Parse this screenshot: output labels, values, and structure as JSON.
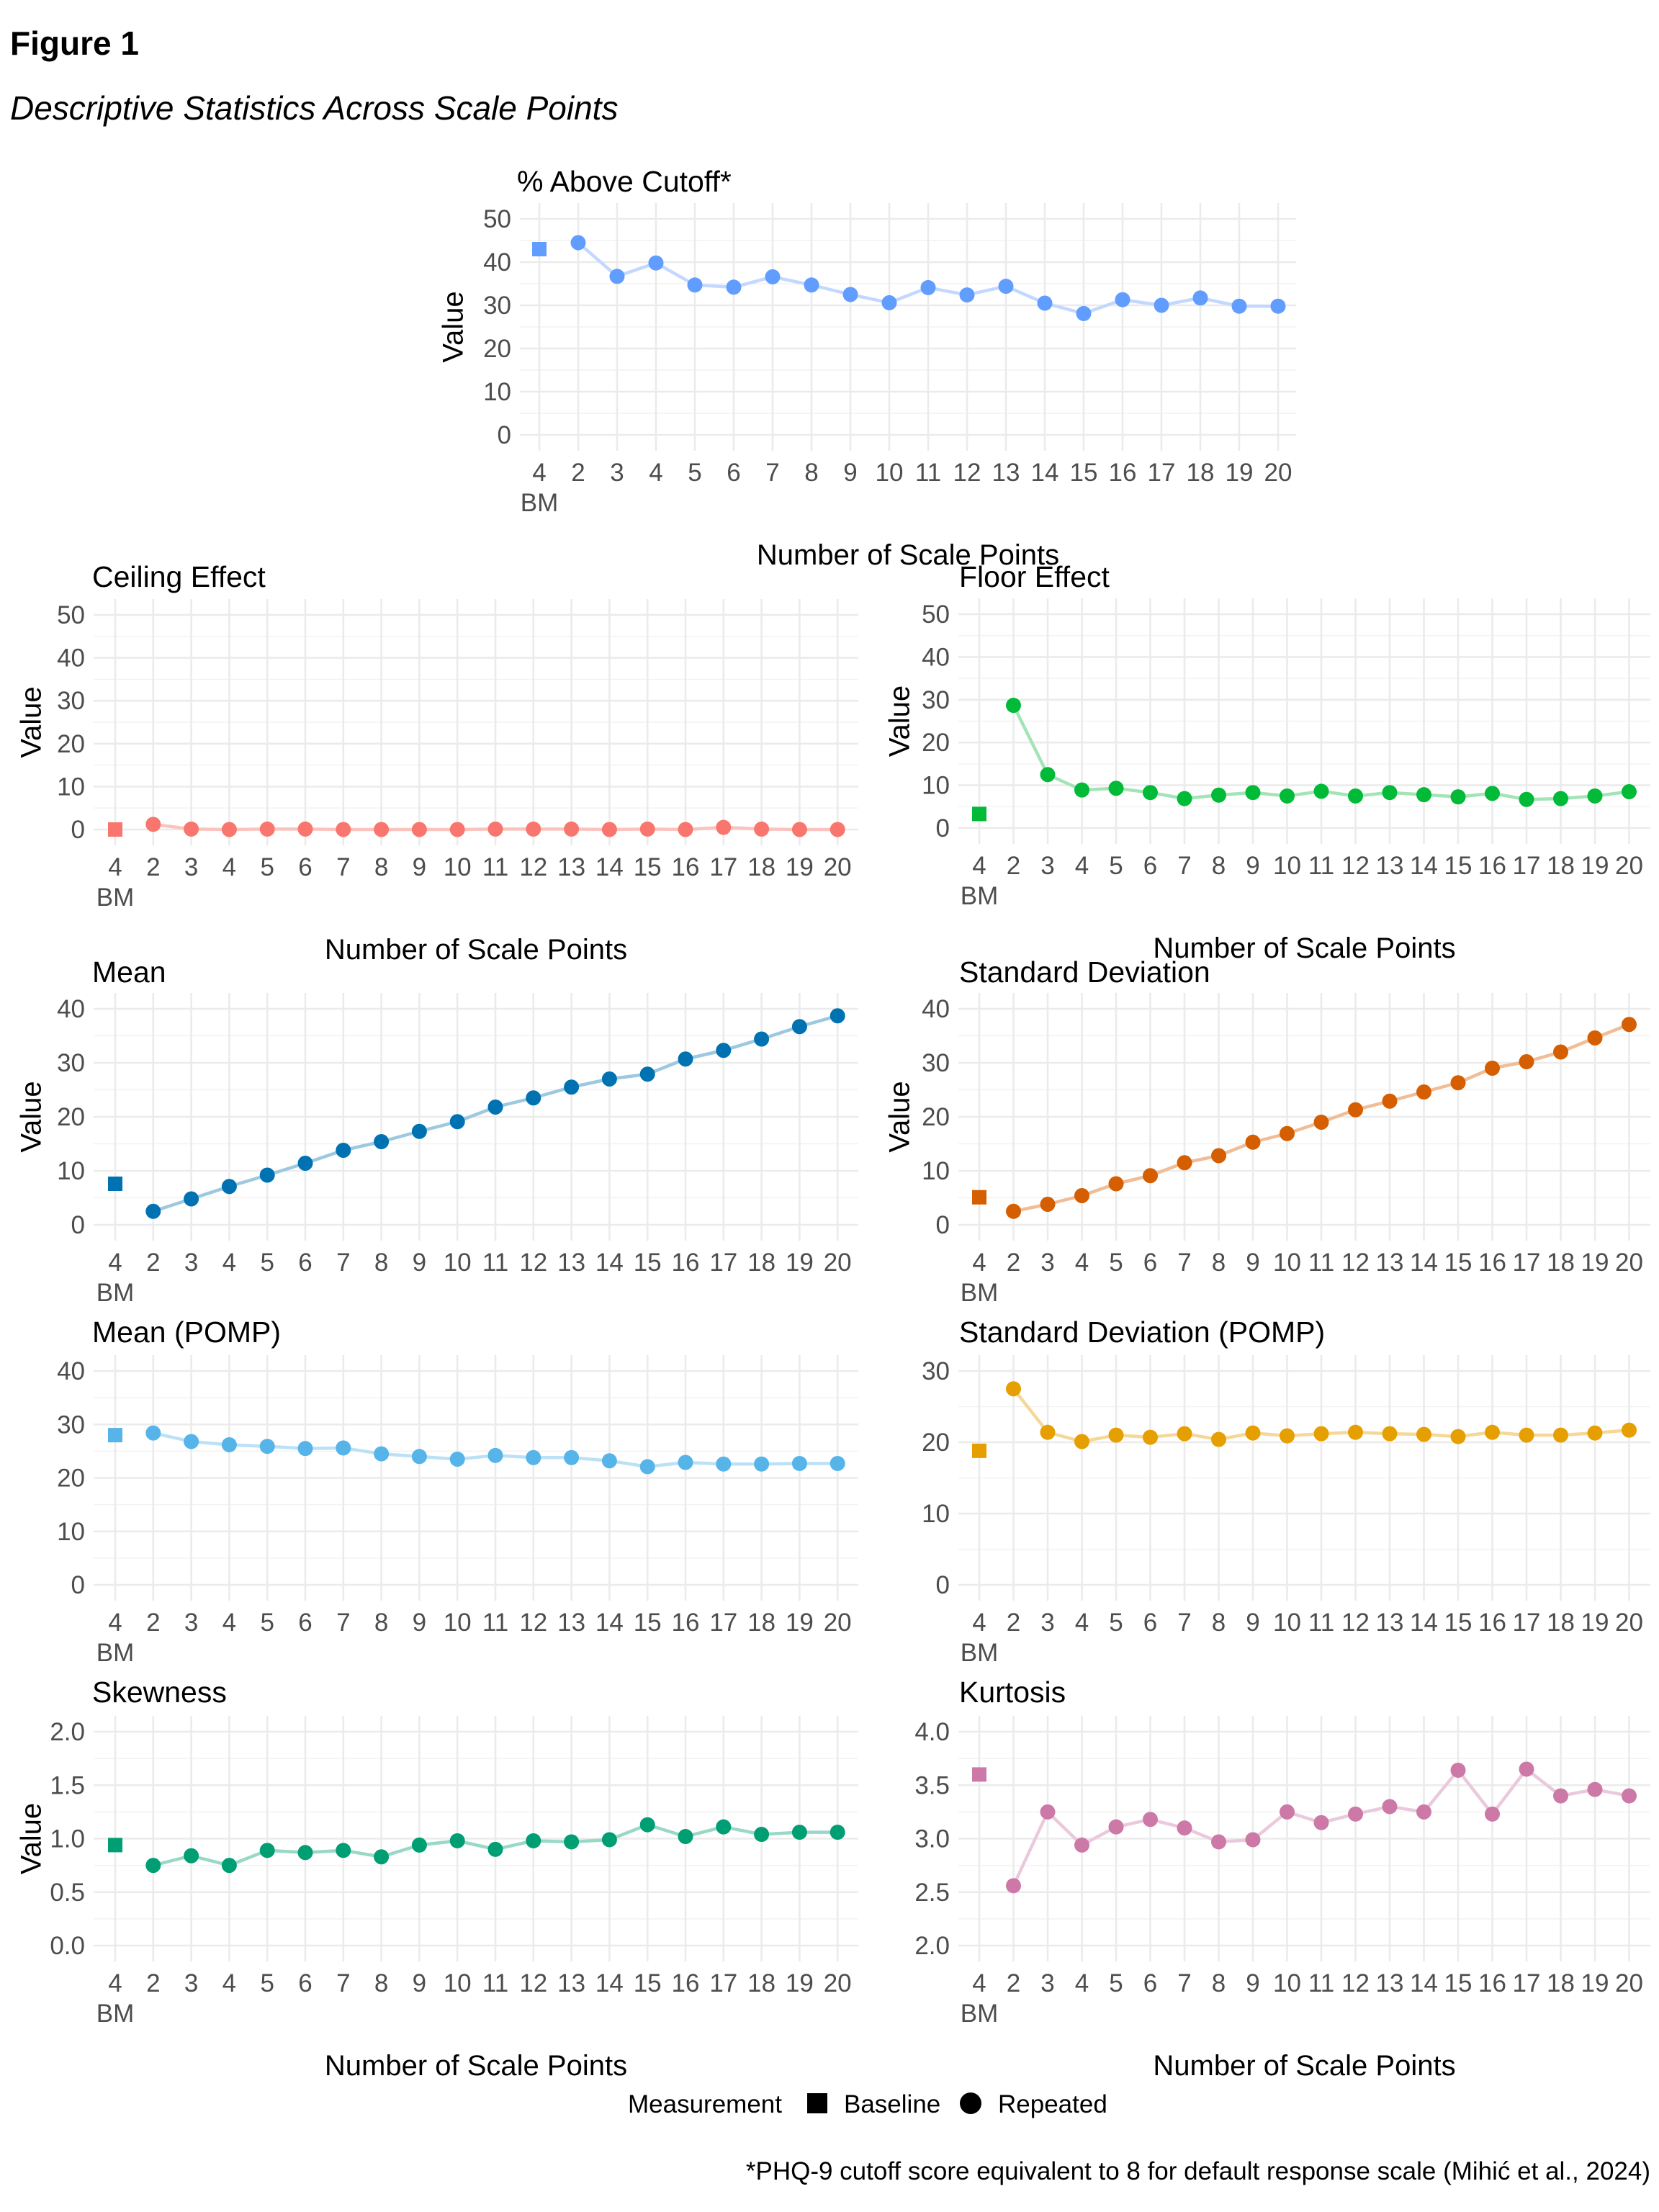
{
  "figure": {
    "label": "Figure 1",
    "title": "Descriptive Statistics Across Scale Points",
    "legend": {
      "title": "Measurement",
      "items": [
        {
          "label": "Baseline",
          "shape": "square"
        },
        {
          "label": "Repeated",
          "shape": "circle"
        }
      ]
    },
    "footnote": "*PHQ-9 cutoff score equivalent to 8 for default response scale (Mihić et al., 2024)"
  },
  "chart_data": [
    {
      "id": "above_cutoff",
      "type": "line",
      "title": "% Above Cutoff*",
      "xlabel": "Number of Scale Points",
      "ylabel": "Value",
      "color": "#619CFF",
      "line_color": "#C3D8FF",
      "categories": [
        "4\nBM",
        "2",
        "3",
        "4",
        "5",
        "6",
        "7",
        "8",
        "9",
        "10",
        "11",
        "12",
        "13",
        "14",
        "15",
        "16",
        "17",
        "18",
        "19",
        "20"
      ],
      "baseline": {
        "category": "4\nBM",
        "value": 43.0
      },
      "repeated": {
        "x": [
          2,
          3,
          4,
          5,
          6,
          7,
          8,
          9,
          10,
          11,
          12,
          13,
          14,
          15,
          16,
          17,
          18,
          19,
          20
        ],
        "values": [
          44.5,
          36.7,
          39.8,
          34.7,
          34.2,
          36.6,
          34.7,
          32.5,
          30.6,
          34.1,
          32.4,
          34.4,
          30.5,
          28.1,
          31.3,
          30.0,
          31.7,
          29.8,
          29.8
        ]
      },
      "ylim": [
        0,
        50
      ],
      "yticks": [
        "0",
        "10",
        "20",
        "30",
        "40",
        "50"
      ],
      "ytick_values": [
        0,
        10,
        20,
        30,
        40,
        50
      ],
      "grid": true
    },
    {
      "id": "ceiling",
      "type": "line",
      "title": "Ceiling Effect",
      "xlabel": "Number of Scale Points",
      "ylabel": "Value",
      "color": "#F8766D",
      "line_color": "#FBC3BE",
      "categories": [
        "4\nBM",
        "2",
        "3",
        "4",
        "5",
        "6",
        "7",
        "8",
        "9",
        "10",
        "11",
        "12",
        "13",
        "14",
        "15",
        "16",
        "17",
        "18",
        "19",
        "20"
      ],
      "baseline": {
        "category": "4\nBM",
        "value": 0.0
      },
      "repeated": {
        "x": [
          2,
          3,
          4,
          5,
          6,
          7,
          8,
          9,
          10,
          11,
          12,
          13,
          14,
          15,
          16,
          17,
          18,
          19,
          20
        ],
        "values": [
          1.2,
          0.1,
          0.0,
          0.1,
          0.1,
          0.0,
          0.0,
          0.0,
          0.0,
          0.1,
          0.1,
          0.1,
          0.0,
          0.1,
          0.0,
          0.5,
          0.1,
          0.0,
          0.0
        ]
      },
      "ylim": [
        0,
        50
      ],
      "yticks": [
        "0",
        "10",
        "20",
        "30",
        "40",
        "50"
      ],
      "ytick_values": [
        0,
        10,
        20,
        30,
        40,
        50
      ],
      "grid": true
    },
    {
      "id": "floor",
      "type": "line",
      "title": "Floor Effect",
      "xlabel": "Number of Scale Points",
      "ylabel": "Value",
      "color": "#00BA38",
      "line_color": "#A3E4B7",
      "categories": [
        "4\nBM",
        "2",
        "3",
        "4",
        "5",
        "6",
        "7",
        "8",
        "9",
        "10",
        "11",
        "12",
        "13",
        "14",
        "15",
        "16",
        "17",
        "18",
        "19",
        "20"
      ],
      "baseline": {
        "category": "4\nBM",
        "value": 3.3
      },
      "repeated": {
        "x": [
          2,
          3,
          4,
          5,
          6,
          7,
          8,
          9,
          10,
          11,
          12,
          13,
          14,
          15,
          16,
          17,
          18,
          19,
          20
        ],
        "values": [
          28.7,
          12.5,
          8.9,
          9.3,
          8.3,
          6.9,
          7.7,
          8.3,
          7.5,
          8.6,
          7.5,
          8.3,
          7.8,
          7.3,
          8.1,
          6.7,
          6.9,
          7.5,
          8.5
        ]
      },
      "ylim": [
        0,
        50
      ],
      "yticks": [
        "0",
        "10",
        "20",
        "30",
        "40",
        "50"
      ],
      "ytick_values": [
        0,
        10,
        20,
        30,
        40,
        50
      ],
      "grid": true
    },
    {
      "id": "mean",
      "type": "line",
      "title": "Mean",
      "xlabel": "",
      "ylabel": "Value",
      "color": "#0072B2",
      "line_color": "#9CC8E0",
      "categories": [
        "4\nBM",
        "2",
        "3",
        "4",
        "5",
        "6",
        "7",
        "8",
        "9",
        "10",
        "11",
        "12",
        "13",
        "14",
        "15",
        "16",
        "17",
        "18",
        "19",
        "20"
      ],
      "baseline": {
        "category": "4\nBM",
        "value": 7.6
      },
      "repeated": {
        "x": [
          2,
          3,
          4,
          5,
          6,
          7,
          8,
          9,
          10,
          11,
          12,
          13,
          14,
          15,
          16,
          17,
          18,
          19,
          20
        ],
        "values": [
          2.5,
          4.8,
          7.1,
          9.2,
          11.4,
          13.8,
          15.4,
          17.3,
          19.1,
          21.8,
          23.5,
          25.5,
          27.0,
          27.9,
          30.7,
          32.3,
          34.4,
          36.7,
          38.7
        ]
      },
      "ylim": [
        0,
        40
      ],
      "yticks": [
        "0",
        "10",
        "20",
        "30",
        "40"
      ],
      "ytick_values": [
        0,
        10,
        20,
        30,
        40
      ],
      "grid": true
    },
    {
      "id": "sd",
      "type": "line",
      "title": "Standard Deviation",
      "xlabel": "",
      "ylabel": "Value",
      "color": "#D55E00",
      "line_color": "#F0BD96",
      "categories": [
        "4\nBM",
        "2",
        "3",
        "4",
        "5",
        "6",
        "7",
        "8",
        "9",
        "10",
        "11",
        "12",
        "13",
        "14",
        "15",
        "16",
        "17",
        "18",
        "19",
        "20"
      ],
      "baseline": {
        "category": "4\nBM",
        "value": 5.1
      },
      "repeated": {
        "x": [
          2,
          3,
          4,
          5,
          6,
          7,
          8,
          9,
          10,
          11,
          12,
          13,
          14,
          15,
          16,
          17,
          18,
          19,
          20
        ],
        "values": [
          2.5,
          3.8,
          5.4,
          7.6,
          9.1,
          11.5,
          12.8,
          15.3,
          16.9,
          19.0,
          21.3,
          22.9,
          24.6,
          26.3,
          29.0,
          30.2,
          32.0,
          34.6,
          37.1
        ]
      },
      "ylim": [
        0,
        40
      ],
      "yticks": [
        "0",
        "10",
        "20",
        "30",
        "40"
      ],
      "ytick_values": [
        0,
        10,
        20,
        30,
        40
      ],
      "grid": true
    },
    {
      "id": "mean_pomp",
      "type": "line",
      "title": "Mean (POMP)",
      "xlabel": "",
      "ylabel": "",
      "color": "#56B4E9",
      "line_color": "#BCE1F6",
      "categories": [
        "4\nBM",
        "2",
        "3",
        "4",
        "5",
        "6",
        "7",
        "8",
        "9",
        "10",
        "11",
        "12",
        "13",
        "14",
        "15",
        "16",
        "17",
        "18",
        "19",
        "20"
      ],
      "baseline": {
        "category": "4\nBM",
        "value": 28.0
      },
      "repeated": {
        "x": [
          2,
          3,
          4,
          5,
          6,
          7,
          8,
          9,
          10,
          11,
          12,
          13,
          14,
          15,
          16,
          17,
          18,
          19,
          20
        ],
        "values": [
          28.4,
          26.8,
          26.2,
          25.9,
          25.5,
          25.6,
          24.5,
          24.0,
          23.5,
          24.2,
          23.8,
          23.8,
          23.2,
          22.1,
          22.9,
          22.6,
          22.6,
          22.7,
          22.7
        ]
      },
      "ylim": [
        0,
        40
      ],
      "yticks": [
        "0",
        "10",
        "20",
        "30",
        "40"
      ],
      "ytick_values": [
        0,
        10,
        20,
        30,
        40
      ],
      "grid": true
    },
    {
      "id": "sd_pomp",
      "type": "line",
      "title": "Standard Deviation (POMP)",
      "xlabel": "",
      "ylabel": "",
      "color": "#E69F00",
      "line_color": "#F5D898",
      "categories": [
        "4\nBM",
        "2",
        "3",
        "4",
        "5",
        "6",
        "7",
        "8",
        "9",
        "10",
        "11",
        "12",
        "13",
        "14",
        "15",
        "16",
        "17",
        "18",
        "19",
        "20"
      ],
      "baseline": {
        "category": "4\nBM",
        "value": 18.8
      },
      "repeated": {
        "x": [
          2,
          3,
          4,
          5,
          6,
          7,
          8,
          9,
          10,
          11,
          12,
          13,
          14,
          15,
          16,
          17,
          18,
          19,
          20
        ],
        "values": [
          27.5,
          21.4,
          20.1,
          21.0,
          20.7,
          21.2,
          20.4,
          21.3,
          20.9,
          21.2,
          21.4,
          21.2,
          21.1,
          20.8,
          21.4,
          21.0,
          21.0,
          21.3,
          21.7
        ]
      },
      "ylim": [
        0,
        30
      ],
      "yticks": [
        "0",
        "10",
        "20",
        "30"
      ],
      "ytick_values": [
        0,
        10,
        20,
        30
      ],
      "grid": true
    },
    {
      "id": "skewness",
      "type": "line",
      "title": "Skewness",
      "xlabel": "Number of Scale Points",
      "ylabel": "Value",
      "color": "#009E73",
      "line_color": "#99D8C7",
      "categories": [
        "4\nBM",
        "2",
        "3",
        "4",
        "5",
        "6",
        "7",
        "8",
        "9",
        "10",
        "11",
        "12",
        "13",
        "14",
        "15",
        "16",
        "17",
        "18",
        "19",
        "20"
      ],
      "baseline": {
        "category": "4\nBM",
        "value": 0.94
      },
      "repeated": {
        "x": [
          2,
          3,
          4,
          5,
          6,
          7,
          8,
          9,
          10,
          11,
          12,
          13,
          14,
          15,
          16,
          17,
          18,
          19,
          20
        ],
        "values": [
          0.75,
          0.84,
          0.75,
          0.89,
          0.87,
          0.89,
          0.83,
          0.94,
          0.98,
          0.9,
          0.98,
          0.97,
          0.99,
          1.13,
          1.02,
          1.11,
          1.04,
          1.06,
          1.06
        ]
      },
      "ylim": [
        0,
        2
      ],
      "yticks": [
        "0.0",
        "0.5",
        "1.0",
        "1.5",
        "2.0"
      ],
      "ytick_values": [
        0,
        0.5,
        1,
        1.5,
        2
      ],
      "grid": true
    },
    {
      "id": "kurtosis",
      "type": "line",
      "title": "Kurtosis",
      "xlabel": "Number of Scale Points",
      "ylabel": "",
      "color": "#CC79A7",
      "line_color": "#EBC9DC",
      "categories": [
        "4\nBM",
        "2",
        "3",
        "4",
        "5",
        "6",
        "7",
        "8",
        "9",
        "10",
        "11",
        "12",
        "13",
        "14",
        "15",
        "16",
        "17",
        "18",
        "19",
        "20"
      ],
      "baseline": {
        "category": "4\nBM",
        "value": 3.6
      },
      "repeated": {
        "x": [
          2,
          3,
          4,
          5,
          6,
          7,
          8,
          9,
          10,
          11,
          12,
          13,
          14,
          15,
          16,
          17,
          18,
          19,
          20
        ],
        "values": [
          2.56,
          3.25,
          2.94,
          3.11,
          3.18,
          3.1,
          2.97,
          2.99,
          3.25,
          3.15,
          3.23,
          3.3,
          3.25,
          3.64,
          3.23,
          3.65,
          3.4,
          3.46,
          3.4
        ]
      },
      "ylim": [
        2,
        4
      ],
      "yticks": [
        "2.0",
        "2.5",
        "3.0",
        "3.5",
        "4.0"
      ],
      "ytick_values": [
        2,
        2.5,
        3,
        3.5,
        4
      ],
      "grid": true
    }
  ]
}
